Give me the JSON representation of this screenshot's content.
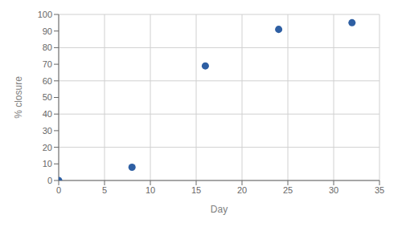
{
  "chart_data": {
    "type": "scatter",
    "x": [
      0,
      8,
      16,
      24,
      32
    ],
    "values": [
      0,
      8,
      69,
      91,
      95
    ],
    "color": "#2E5FA3",
    "xlabel": "Day",
    "ylabel": "% closure",
    "xlim": [
      0,
      35
    ],
    "ylim": [
      0,
      100
    ],
    "xticks": [
      0,
      5,
      10,
      15,
      20,
      25,
      30,
      35
    ],
    "yticks": [
      0,
      10,
      20,
      30,
      40,
      50,
      60,
      70,
      80,
      90,
      100
    ],
    "grid": true
  }
}
